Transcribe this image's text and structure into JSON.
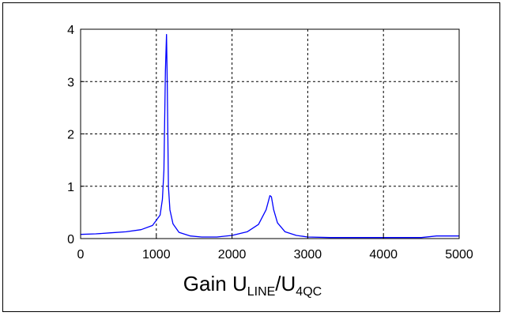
{
  "chart_data": {
    "type": "line",
    "title": "",
    "xlabel": "",
    "ylabel": "",
    "xlim": [
      0,
      5000
    ],
    "ylim": [
      0,
      4
    ],
    "xticks": [
      "0",
      "1000",
      "2000",
      "3000",
      "4000",
      "5000"
    ],
    "yticks": [
      "0",
      "1",
      "2",
      "3",
      "4"
    ],
    "grid": true,
    "line_color": "#0000ff",
    "series": [
      {
        "x": [
          0,
          200,
          400,
          600,
          800,
          950,
          1050,
          1080,
          1100,
          1120,
          1135,
          1145,
          1160,
          1180,
          1220,
          1300,
          1450,
          1600,
          1800,
          2000,
          2200,
          2350,
          2450,
          2500,
          2520,
          2550,
          2600,
          2700,
          2850,
          3000,
          3300,
          3600,
          4000,
          4500,
          4700,
          5000
        ],
        "y": [
          0.08,
          0.09,
          0.11,
          0.13,
          0.17,
          0.25,
          0.45,
          0.75,
          1.3,
          3.2,
          3.9,
          2.9,
          1.0,
          0.55,
          0.28,
          0.12,
          0.05,
          0.03,
          0.03,
          0.06,
          0.13,
          0.27,
          0.55,
          0.82,
          0.8,
          0.55,
          0.3,
          0.13,
          0.06,
          0.03,
          0.02,
          0.02,
          0.02,
          0.02,
          0.05,
          0.05
        ]
      }
    ]
  },
  "caption": {
    "main": "Gain U",
    "sub1": "LINE",
    "sep": "/U",
    "sub2": "4QC"
  }
}
